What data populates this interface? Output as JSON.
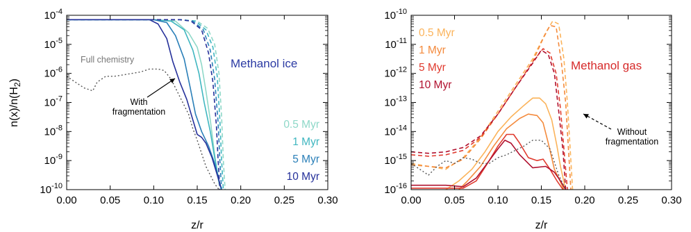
{
  "colors": {
    "ice_05": "#8ed8c8",
    "ice_1": "#3fb6c0",
    "ice_5": "#2a7fb8",
    "ice_10": "#25309a",
    "gas_05": "#fbb35a",
    "gas_1": "#f48a3c",
    "gas_5": "#e03a2e",
    "gas_10": "#b0102e",
    "full_chem": "#555555",
    "title_ice": "#2b3aa3",
    "title_gas": "#d62a2a",
    "annotation": "#000000"
  },
  "chart_data": [
    {
      "type": "line",
      "title": "Methanol ice",
      "xlabel": "z/r",
      "ylabel": "n(x)/n(H2)",
      "y_scale": "log",
      "xlim": [
        0,
        0.3
      ],
      "ylim": [
        1e-10,
        0.0001
      ],
      "x_ticks": [
        "0.00",
        "0.05",
        "0.10",
        "0.15",
        "0.20",
        "0.25",
        "0.30"
      ],
      "y_ticks": [
        {
          "base": "10",
          "exp": "-10",
          "v": -10
        },
        {
          "base": "10",
          "exp": "-9",
          "v": -9
        },
        {
          "base": "10",
          "exp": "-8",
          "v": -8
        },
        {
          "base": "10",
          "exp": "-7",
          "v": -7
        },
        {
          "base": "10",
          "exp": "-6",
          "v": -6
        },
        {
          "base": "10",
          "exp": "-5",
          "v": -5
        },
        {
          "base": "10",
          "exp": "-4",
          "v": -4
        }
      ],
      "ylabel_parts": {
        "pre": "n(x)/n(H",
        "sub": "2",
        "post": ")"
      },
      "annotations": {
        "full_chemistry": "Full chemistry",
        "with_frag_1": "With",
        "with_frag_2": "fragmentation"
      },
      "legend": [
        "0.5 Myr",
        "1 Myr",
        "5 Myr",
        "10 Myr"
      ],
      "series": [
        {
          "name": "0.5 Myr",
          "color_key": "ice_05",
          "style": "solid",
          "x": [
            0.0,
            0.1,
            0.125,
            0.14,
            0.15,
            0.155,
            0.16,
            0.165,
            0.17,
            0.175,
            0.178
          ],
          "logy": [
            -4.15,
            -4.15,
            -4.2,
            -4.6,
            -5.1,
            -5.7,
            -6.6,
            -7.6,
            -8.8,
            -9.8,
            -10
          ]
        },
        {
          "name": "1 Myr",
          "color_key": "ice_1",
          "style": "solid",
          "x": [
            0.0,
            0.1,
            0.12,
            0.135,
            0.145,
            0.152,
            0.158,
            0.165,
            0.17,
            0.175,
            0.178
          ],
          "logy": [
            -4.15,
            -4.15,
            -4.2,
            -4.5,
            -5.2,
            -6.0,
            -7.0,
            -8.0,
            -8.9,
            -9.7,
            -10
          ]
        },
        {
          "name": "5 Myr",
          "color_key": "ice_5",
          "style": "solid",
          "x": [
            0.0,
            0.1,
            0.115,
            0.125,
            0.135,
            0.142,
            0.148,
            0.155,
            0.163,
            0.17,
            0.176,
            0.178
          ],
          "logy": [
            -4.15,
            -4.15,
            -4.25,
            -4.7,
            -5.5,
            -6.5,
            -7.4,
            -8.0,
            -8.5,
            -9.1,
            -9.8,
            -10
          ]
        },
        {
          "name": "10 Myr",
          "color_key": "ice_10",
          "style": "solid",
          "x": [
            0.0,
            0.095,
            0.105,
            0.115,
            0.122,
            0.13,
            0.138,
            0.145,
            0.15,
            0.155,
            0.16,
            0.167,
            0.172,
            0.178
          ],
          "logy": [
            -4.15,
            -4.15,
            -4.3,
            -4.8,
            -5.6,
            -6.3,
            -6.9,
            -7.6,
            -8.1,
            -8.2,
            -8.4,
            -8.9,
            -9.4,
            -10
          ]
        },
        {
          "name": "0.5 Myr (no frag)",
          "color_key": "ice_05",
          "style": "dashed",
          "x": [
            0.0,
            0.13,
            0.15,
            0.162,
            0.17,
            0.175,
            0.178,
            0.18,
            0.182
          ],
          "logy": [
            -4.15,
            -4.15,
            -4.2,
            -4.45,
            -5.0,
            -6.0,
            -7.5,
            -9.0,
            -10
          ]
        },
        {
          "name": "1 Myr (no frag)",
          "color_key": "ice_1",
          "style": "dashed",
          "x": [
            0.0,
            0.13,
            0.148,
            0.16,
            0.168,
            0.173,
            0.176,
            0.178,
            0.18
          ],
          "logy": [
            -4.15,
            -4.15,
            -4.2,
            -4.5,
            -5.1,
            -6.1,
            -7.6,
            -9.0,
            -10
          ]
        },
        {
          "name": "5 Myr (no frag)",
          "color_key": "ice_5",
          "style": "dashed",
          "x": [
            0.0,
            0.13,
            0.145,
            0.157,
            0.165,
            0.17,
            0.174,
            0.176,
            0.178
          ],
          "logy": [
            -4.15,
            -4.15,
            -4.2,
            -4.5,
            -5.2,
            -6.2,
            -7.7,
            -9.0,
            -10
          ]
        },
        {
          "name": "10 Myr (no frag)",
          "color_key": "ice_10",
          "style": "dashed",
          "x": [
            0.0,
            0.13,
            0.143,
            0.155,
            0.163,
            0.168,
            0.172,
            0.174,
            0.176
          ],
          "logy": [
            -4.15,
            -4.15,
            -4.2,
            -4.5,
            -5.3,
            -6.3,
            -7.8,
            -9.0,
            -10
          ]
        },
        {
          "name": "Full chemistry",
          "color_key": "full_chem",
          "style": "dotted",
          "x": [
            0.0,
            0.01,
            0.02,
            0.03,
            0.035,
            0.045,
            0.055,
            0.065,
            0.075,
            0.085,
            0.095,
            0.105,
            0.112,
            0.12,
            0.13,
            0.14,
            0.145,
            0.15,
            0.16,
            0.17,
            0.175
          ],
          "logy": [
            -6.1,
            -6.3,
            -6.5,
            -6.6,
            -6.3,
            -6.1,
            -6.1,
            -6.05,
            -6.0,
            -5.95,
            -5.85,
            -5.85,
            -5.9,
            -6.2,
            -6.8,
            -7.4,
            -7.9,
            -8.3,
            -9.2,
            -9.8,
            -10
          ]
        }
      ]
    },
    {
      "type": "line",
      "title": "Methanol gas",
      "xlabel": "z/r",
      "ylabel": "",
      "y_scale": "log",
      "xlim": [
        0,
        0.3
      ],
      "ylim": [
        1e-16,
        1e-10
      ],
      "x_ticks": [
        "0.00",
        "0.05",
        "0.10",
        "0.15",
        "0.20",
        "0.25",
        "0.30"
      ],
      "y_ticks": [
        {
          "base": "10",
          "exp": "-16",
          "v": -16
        },
        {
          "base": "10",
          "exp": "-15",
          "v": -15
        },
        {
          "base": "10",
          "exp": "-14",
          "v": -14
        },
        {
          "base": "10",
          "exp": "-13",
          "v": -13
        },
        {
          "base": "10",
          "exp": "-12",
          "v": -12
        },
        {
          "base": "10",
          "exp": "-11",
          "v": -11
        },
        {
          "base": "10",
          "exp": "-10",
          "v": -10
        }
      ],
      "annotations": {
        "without_frag_1": "Without",
        "without_frag_2": "fragmentation"
      },
      "legend": [
        "0.5 Myr",
        "1 Myr",
        "5 Myr",
        "10 Myr"
      ],
      "series": [
        {
          "name": "0.5 Myr",
          "color_key": "gas_05",
          "style": "solid",
          "x": [
            0.04,
            0.055,
            0.07,
            0.085,
            0.1,
            0.115,
            0.13,
            0.14,
            0.148,
            0.155,
            0.162,
            0.168,
            0.172,
            0.178
          ],
          "logy": [
            -16,
            -15.7,
            -15.3,
            -14.7,
            -14.0,
            -13.5,
            -13.1,
            -12.85,
            -12.85,
            -13.05,
            -13.6,
            -14.5,
            -15.2,
            -16
          ]
        },
        {
          "name": "1 Myr",
          "color_key": "gas_1",
          "style": "solid",
          "x": [
            0.055,
            0.065,
            0.08,
            0.095,
            0.11,
            0.125,
            0.135,
            0.145,
            0.152,
            0.158,
            0.165,
            0.17,
            0.176
          ],
          "logy": [
            -16,
            -15.7,
            -15.2,
            -14.5,
            -13.9,
            -13.55,
            -13.4,
            -13.45,
            -13.7,
            -14.4,
            -15.3,
            -15.6,
            -16
          ]
        },
        {
          "name": "5 Myr",
          "color_key": "gas_5",
          "style": "solid",
          "x": [
            0.0,
            0.02,
            0.04,
            0.06,
            0.075,
            0.09,
            0.1,
            0.11,
            0.118,
            0.125,
            0.135,
            0.145,
            0.152,
            0.16,
            0.168,
            0.175
          ],
          "logy": [
            -15.95,
            -15.95,
            -15.95,
            -15.95,
            -15.7,
            -15.0,
            -14.5,
            -14.1,
            -14.1,
            -14.4,
            -14.9,
            -15.0,
            -14.95,
            -15.3,
            -15.7,
            -16
          ]
        },
        {
          "name": "10 Myr",
          "color_key": "gas_10",
          "style": "solid",
          "x": [
            0.0,
            0.02,
            0.04,
            0.06,
            0.075,
            0.09,
            0.1,
            0.108,
            0.115,
            0.125,
            0.14,
            0.155,
            0.165,
            0.172,
            0.178
          ],
          "logy": [
            -15.85,
            -15.85,
            -15.85,
            -15.9,
            -15.6,
            -15.0,
            -14.6,
            -14.3,
            -14.4,
            -14.8,
            -15.25,
            -15.2,
            -15.4,
            -15.7,
            -16
          ]
        },
        {
          "name": "0.5 Myr (no frag)",
          "color_key": "gas_05",
          "style": "dashed",
          "x": [
            0.0,
            0.02,
            0.04,
            0.06,
            0.08,
            0.1,
            0.12,
            0.14,
            0.155,
            0.163,
            0.17,
            0.176,
            0.18,
            0.183,
            0.186
          ],
          "logy": [
            -15.1,
            -15.2,
            -15.3,
            -14.9,
            -14.2,
            -13.3,
            -12.4,
            -11.5,
            -10.6,
            -10.2,
            -10.3,
            -11.5,
            -13.0,
            -14.5,
            -16
          ]
        },
        {
          "name": "1 Myr (no frag)",
          "color_key": "gas_1",
          "style": "dashed",
          "x": [
            0.0,
            0.02,
            0.04,
            0.06,
            0.08,
            0.1,
            0.12,
            0.14,
            0.152,
            0.16,
            0.167,
            0.173,
            0.178,
            0.181,
            0.184
          ],
          "logy": [
            -15.15,
            -15.2,
            -15.25,
            -14.95,
            -14.25,
            -13.4,
            -12.5,
            -11.6,
            -10.8,
            -10.35,
            -10.4,
            -11.6,
            -13.0,
            -14.5,
            -16
          ]
        },
        {
          "name": "5 Myr (no frag)",
          "color_key": "gas_5",
          "style": "dashed",
          "x": [
            0.0,
            0.02,
            0.04,
            0.06,
            0.08,
            0.1,
            0.12,
            0.14,
            0.152,
            0.16,
            0.167,
            0.172,
            0.176,
            0.18
          ],
          "logy": [
            -14.8,
            -14.85,
            -14.8,
            -14.65,
            -14.2,
            -13.4,
            -12.5,
            -11.6,
            -11.15,
            -11.3,
            -12.0,
            -13.2,
            -14.6,
            -16
          ]
        },
        {
          "name": "10 Myr (no frag)",
          "color_key": "gas_10",
          "style": "dashed",
          "x": [
            0.0,
            0.02,
            0.04,
            0.06,
            0.08,
            0.1,
            0.12,
            0.14,
            0.15,
            0.158,
            0.165,
            0.17,
            0.175,
            0.178
          ],
          "logy": [
            -14.7,
            -14.75,
            -14.7,
            -14.55,
            -14.15,
            -13.4,
            -12.5,
            -11.65,
            -11.2,
            -11.35,
            -12.0,
            -13.3,
            -14.7,
            -16
          ]
        },
        {
          "name": "Full chemistry",
          "color_key": "full_chem",
          "style": "dotted",
          "x": [
            0.0,
            0.01,
            0.02,
            0.03,
            0.04,
            0.05,
            0.06,
            0.07,
            0.08,
            0.09,
            0.1,
            0.11,
            0.12,
            0.13,
            0.14,
            0.15,
            0.16,
            0.17,
            0.178
          ],
          "logy": [
            -15.1,
            -15.3,
            -15.5,
            -15.2,
            -15.0,
            -15.1,
            -14.9,
            -14.95,
            -15.1,
            -15.1,
            -14.9,
            -14.8,
            -14.65,
            -14.5,
            -14.3,
            -14.3,
            -14.6,
            -15.5,
            -16
          ]
        }
      ]
    }
  ]
}
